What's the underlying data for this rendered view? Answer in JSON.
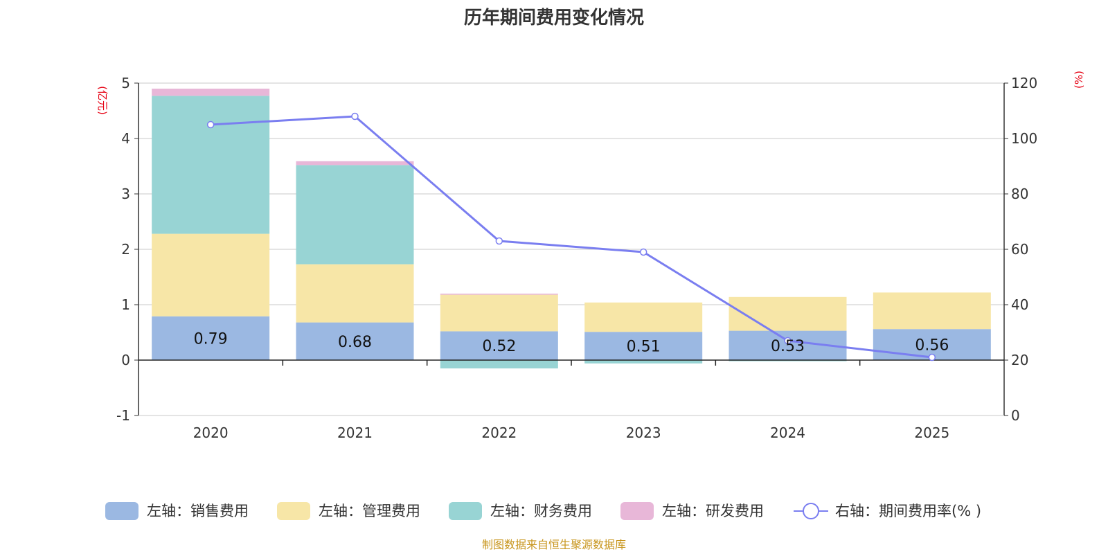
{
  "chart_data": {
    "type": "bar",
    "title": "历年期间费用变化情况",
    "categories": [
      "2020",
      "2021",
      "2022",
      "2023",
      "2024",
      "2025"
    ],
    "left_axis": {
      "unit": "(亿元)",
      "ylim": [
        -1,
        5
      ],
      "ticks": [
        "5",
        "4",
        "3",
        "2",
        "1",
        "0",
        "-1"
      ]
    },
    "right_axis": {
      "unit": "(%)",
      "ylim": [
        0,
        120
      ],
      "ticks": [
        "120",
        "100",
        "80",
        "60",
        "40",
        "20",
        "0"
      ]
    },
    "series": [
      {
        "name": "左轴：销售费用",
        "axis": "left",
        "type": "stacked-bar",
        "color": "#9bb8e2",
        "values": [
          0.79,
          0.68,
          0.52,
          0.51,
          0.53,
          0.56
        ],
        "labels": [
          "0.79",
          "0.68",
          "0.52",
          "0.51",
          "0.53",
          "0.56"
        ]
      },
      {
        "name": "左轴：管理费用",
        "axis": "left",
        "type": "stacked-bar",
        "color": "#f7e6a7",
        "values": [
          1.49,
          1.05,
          0.66,
          0.53,
          0.61,
          0.66
        ]
      },
      {
        "name": "左轴：财务费用",
        "axis": "left",
        "type": "stacked-bar",
        "color": "#98d4d4",
        "values": [
          2.49,
          1.79,
          -0.15,
          -0.06,
          -0.02,
          0.0
        ]
      },
      {
        "name": "左轴：研发费用",
        "axis": "left",
        "type": "stacked-bar",
        "color": "#e8b7d8",
        "values": [
          0.13,
          0.07,
          0.02,
          0.0,
          0.0,
          0.0
        ]
      },
      {
        "name": "右轴：期间费用率(% )",
        "axis": "right",
        "type": "line",
        "color": "#7a7ef0",
        "values": [
          105,
          108,
          63,
          59,
          27,
          21
        ]
      }
    ],
    "legend_position": "bottom",
    "grid": true,
    "source": "制图数据来自恒生聚源数据库"
  }
}
